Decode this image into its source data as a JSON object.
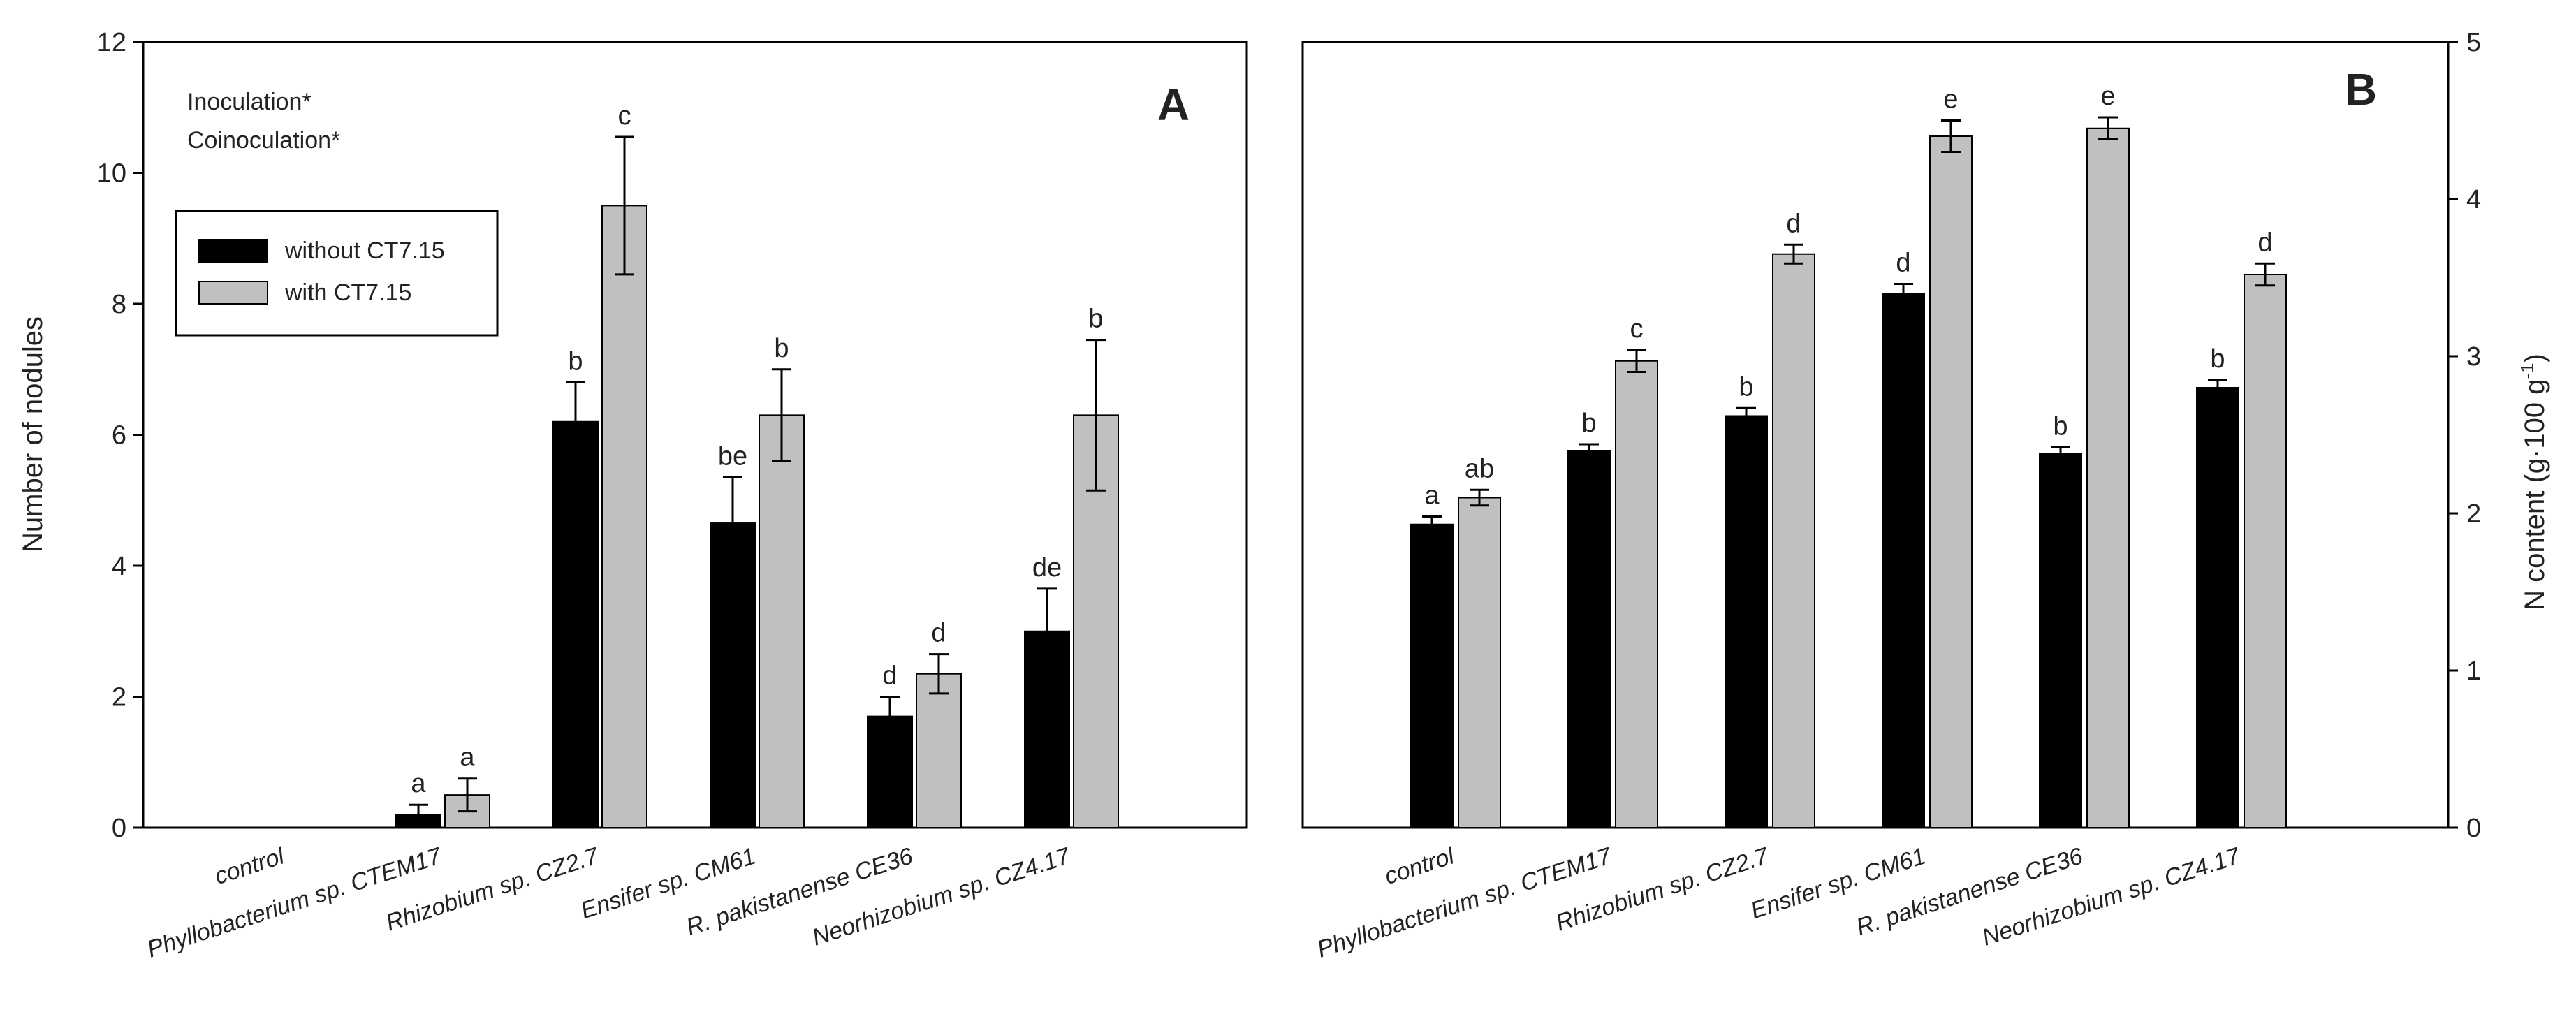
{
  "colors": {
    "series_without": "#000000",
    "series_with": "#c0c0c0",
    "axis": "#000000"
  },
  "chart_data": [
    {
      "type": "bar",
      "panel_letter": "A",
      "title": "",
      "xlabel": "",
      "ylabel": "Number of nodules",
      "ylim": [
        0,
        12
      ],
      "yticks": [
        0,
        2,
        4,
        6,
        8,
        10,
        12
      ],
      "y_axis_side": "left",
      "grid": false,
      "legend_position": "upper-left",
      "categories": [
        "control",
        "Phyllobacterium sp. CTEM17",
        "Rhizobium sp. CZ2.7",
        "Ensifer sp. CM61",
        "R. pakistanense CE36",
        "Neorhizobium sp. CZ4.17"
      ],
      "notes": [
        "Inoculation*",
        "Coinoculation*"
      ],
      "series": [
        {
          "name": "without CT7.15",
          "color": "#000000",
          "values": [
            0,
            0.2,
            6.2,
            4.65,
            1.7,
            3.0
          ],
          "errors": [
            0,
            0.15,
            0.6,
            0.7,
            0.3,
            0.65
          ],
          "letters": [
            "",
            "a",
            "b",
            "be",
            "d",
            "de"
          ]
        },
        {
          "name": "with CT7.15",
          "color": "#c0c0c0",
          "values": [
            0,
            0.5,
            9.5,
            6.3,
            2.35,
            6.3
          ],
          "errors": [
            0,
            0.25,
            1.05,
            0.7,
            0.3,
            1.15
          ],
          "letters": [
            "",
            "a",
            "c",
            "b",
            "d",
            "b"
          ]
        }
      ]
    },
    {
      "type": "bar",
      "panel_letter": "B",
      "title": "",
      "xlabel": "",
      "ylabel": "N content (g·100 g",
      "ylabel_superscript": "-1",
      "ylabel_suffix": ")",
      "ylim": [
        0,
        5
      ],
      "yticks": [
        0,
        1,
        2,
        3,
        4,
        5
      ],
      "y_axis_side": "right",
      "grid": false,
      "categories": [
        "control",
        "Phyllobacterium sp. CTEM17",
        "Rhizobium sp. CZ2.7",
        "Ensifer sp. CM61",
        "R. pakistanense CE36",
        "Neorhizobium sp. CZ4.17"
      ],
      "series": [
        {
          "name": "without CT7.15",
          "color": "#000000",
          "values": [
            1.93,
            2.4,
            2.62,
            3.4,
            2.38,
            2.8
          ],
          "errors": [
            0.05,
            0.04,
            0.05,
            0.06,
            0.04,
            0.05
          ],
          "letters": [
            "a",
            "b",
            "b",
            "d",
            "b",
            "b"
          ]
        },
        {
          "name": "with CT7.15",
          "color": "#c0c0c0",
          "values": [
            2.1,
            2.97,
            3.65,
            4.4,
            4.45,
            3.52
          ],
          "errors": [
            0.05,
            0.07,
            0.06,
            0.1,
            0.07,
            0.07
          ],
          "letters": [
            "ab",
            "c",
            "d",
            "e",
            "e",
            "d"
          ]
        }
      ]
    }
  ]
}
